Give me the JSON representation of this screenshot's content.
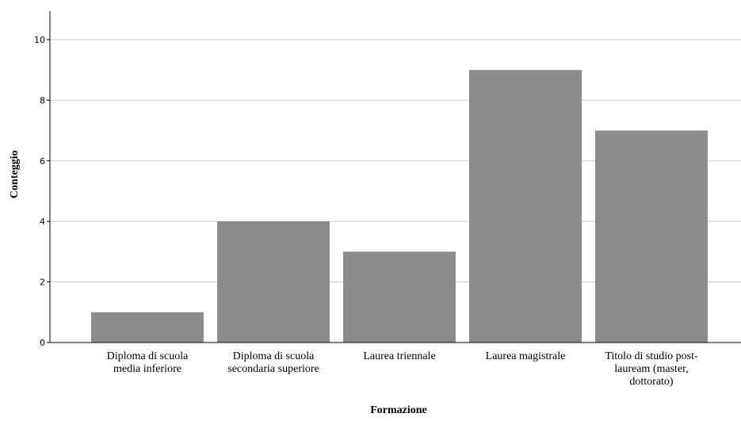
{
  "chart_data": {
    "type": "bar",
    "title": "",
    "xlabel": "Formazione",
    "ylabel": "Conteggio",
    "categories": [
      [
        "Diploma di scuola",
        "media inferiore"
      ],
      [
        "Diploma di scuola",
        "secondaria superiore"
      ],
      [
        "Laurea triennale"
      ],
      [
        "Laurea magistrale"
      ],
      [
        "Titolo di studio post-",
        "lauream (master,",
        "dottorato)"
      ]
    ],
    "values": [
      1,
      4,
      3,
      9,
      7
    ],
    "ylim": [
      0,
      11
    ],
    "yticks": [
      0,
      2,
      4,
      6,
      8,
      10
    ],
    "grid": true,
    "legend": "none",
    "bar_color": "#8c8c8c",
    "grid_color": "#cccccc",
    "axis_color": "#000000"
  }
}
